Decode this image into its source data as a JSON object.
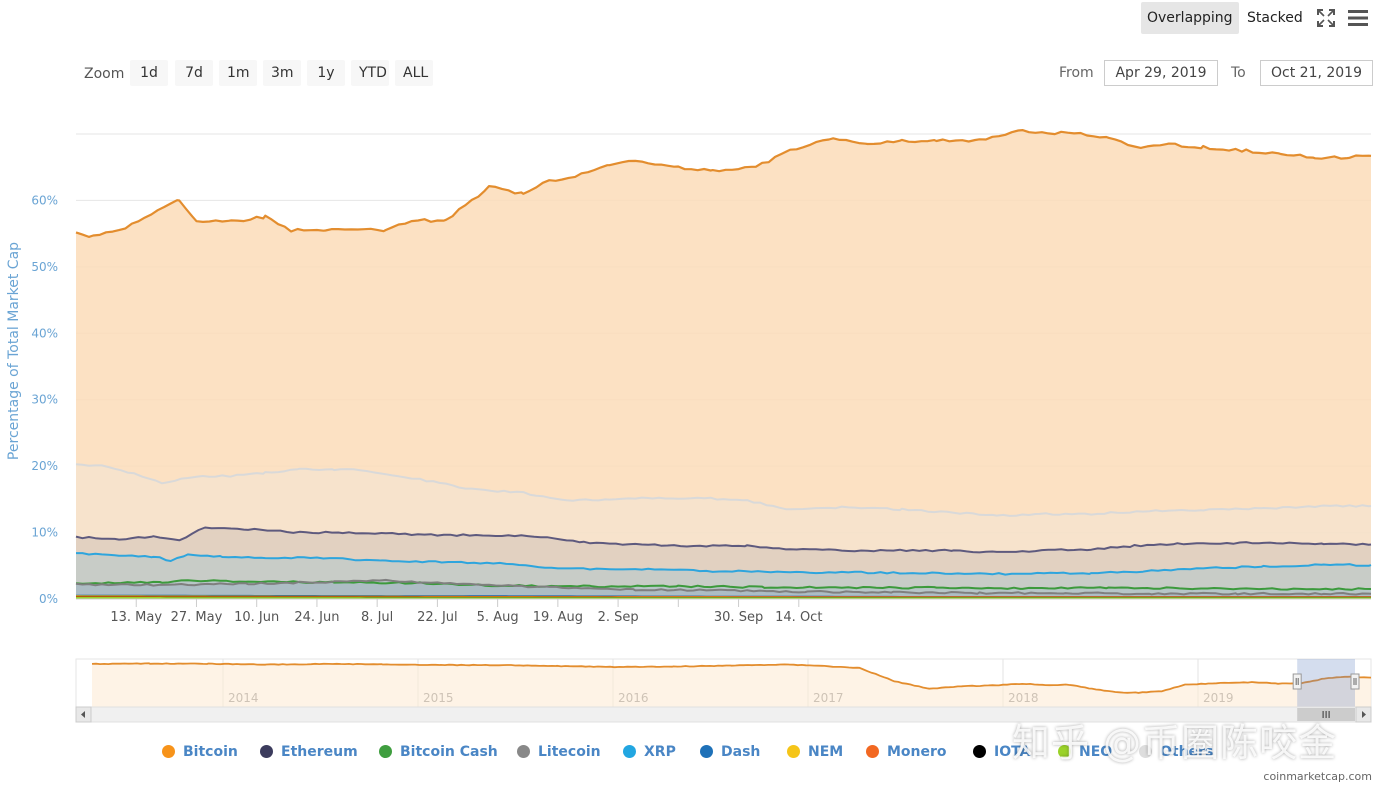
{
  "toolbar": {
    "zoom_label": "Zoom",
    "zoom_buttons": [
      "1d",
      "7d",
      "1m",
      "3m",
      "1y",
      "YTD",
      "ALL"
    ],
    "mode_overlapping": "Overlapping",
    "mode_stacked": "Stacked",
    "from_label": "From",
    "from_value": "Apr 29, 2019",
    "to_label": "To",
    "to_value": "Oct 21, 2019",
    "icons": [
      "fullscreen-icon",
      "menu-icon"
    ]
  },
  "chart_data": {
    "type": "area",
    "title": "",
    "ylabel": "Percentage of Total Market Cap",
    "ylim": [
      0,
      70
    ],
    "yticks": [
      "0%",
      "10%",
      "20%",
      "30%",
      "40%",
      "50%",
      "60%"
    ],
    "xticks": [
      "13. May",
      "27. May",
      "10. Jun",
      "24. Jun",
      "8. Jul",
      "22. Jul",
      "5. Aug",
      "19. Aug",
      "2. Sep",
      "30. Sep",
      "14. Oct"
    ],
    "x_range": [
      "2019-04-29",
      "2019-10-21"
    ],
    "grid": true,
    "legend_position": "bottom",
    "series": [
      {
        "name": "Bitcoin",
        "color": "#e38d2e",
        "fill": "#fbdcb8",
        "values": [
          [
            0,
            55
          ],
          [
            4,
            54.5
          ],
          [
            10,
            55.5
          ],
          [
            16,
            57.5
          ],
          [
            22,
            59.5
          ],
          [
            24,
            60
          ],
          [
            28,
            57
          ],
          [
            36,
            56.8
          ],
          [
            44,
            57.5
          ],
          [
            50,
            55.5
          ],
          [
            58,
            55.5
          ],
          [
            72,
            55.5
          ],
          [
            78,
            57
          ],
          [
            86,
            57
          ],
          [
            92,
            60
          ],
          [
            96,
            62
          ],
          [
            104,
            61
          ],
          [
            110,
            63
          ],
          [
            116,
            63.5
          ],
          [
            124,
            65.5
          ],
          [
            130,
            66
          ],
          [
            140,
            65
          ],
          [
            148,
            64.5
          ],
          [
            158,
            65
          ],
          [
            166,
            67.5
          ],
          [
            176,
            69.5
          ],
          [
            184,
            68.5
          ],
          [
            192,
            69
          ],
          [
            200,
            69
          ],
          [
            210,
            69
          ],
          [
            220,
            70.5
          ],
          [
            226,
            70
          ],
          [
            232,
            70.2
          ],
          [
            240,
            69.5
          ],
          [
            246,
            68
          ],
          [
            254,
            68.5
          ],
          [
            262,
            68
          ],
          [
            272,
            67.5
          ],
          [
            280,
            67
          ],
          [
            288,
            66.5
          ],
          [
            296,
            66.5
          ],
          [
            301,
            66.7
          ]
        ]
      },
      {
        "name": "Others",
        "color": "#d9d9d9",
        "fill": "#f3e5d3",
        "values": [
          [
            0,
            20.3
          ],
          [
            6,
            20
          ],
          [
            14,
            18.8
          ],
          [
            20,
            17.5
          ],
          [
            28,
            18.5
          ],
          [
            36,
            18.5
          ],
          [
            44,
            19
          ],
          [
            52,
            19.5
          ],
          [
            60,
            19.5
          ],
          [
            66,
            19.5
          ],
          [
            72,
            18.8
          ],
          [
            80,
            18
          ],
          [
            92,
            16.5
          ],
          [
            104,
            16
          ],
          [
            114,
            14.8
          ],
          [
            124,
            15
          ],
          [
            134,
            15.2
          ],
          [
            146,
            15.2
          ],
          [
            156,
            14.8
          ],
          [
            166,
            13.5
          ],
          [
            178,
            13.8
          ],
          [
            192,
            13.5
          ],
          [
            204,
            13
          ],
          [
            214,
            12.5
          ],
          [
            224,
            12.8
          ],
          [
            236,
            12.8
          ],
          [
            248,
            13.2
          ],
          [
            262,
            13.4
          ],
          [
            276,
            13.6
          ],
          [
            290,
            14
          ],
          [
            301,
            14
          ]
        ]
      },
      {
        "name": "Ethereum",
        "color": "#5e5a7e",
        "fill": "#d2c2b8",
        "values": [
          [
            0,
            9.3
          ],
          [
            10,
            9
          ],
          [
            18,
            9.4
          ],
          [
            24,
            8.8
          ],
          [
            30,
            10.8
          ],
          [
            40,
            10.5
          ],
          [
            52,
            10
          ],
          [
            62,
            10
          ],
          [
            72,
            9.9
          ],
          [
            84,
            9.6
          ],
          [
            96,
            9.6
          ],
          [
            108,
            9.4
          ],
          [
            118,
            8.5
          ],
          [
            130,
            8.2
          ],
          [
            142,
            8
          ],
          [
            156,
            8
          ],
          [
            166,
            7.5
          ],
          [
            178,
            7.3
          ],
          [
            190,
            7.3
          ],
          [
            204,
            7.3
          ],
          [
            214,
            7
          ],
          [
            226,
            7.3
          ],
          [
            236,
            7.5
          ],
          [
            246,
            8
          ],
          [
            256,
            8.3
          ],
          [
            266,
            8.4
          ],
          [
            276,
            8.5
          ],
          [
            290,
            8.3
          ],
          [
            301,
            8.2
          ]
        ]
      },
      {
        "name": "XRP",
        "color": "#2ea5dd",
        "fill": "#b2c9cc",
        "values": [
          [
            0,
            6.9
          ],
          [
            10,
            6.6
          ],
          [
            18,
            6.4
          ],
          [
            22,
            5.8
          ],
          [
            26,
            6.6
          ],
          [
            34,
            6.4
          ],
          [
            44,
            6.2
          ],
          [
            56,
            6.2
          ],
          [
            66,
            5.9
          ],
          [
            76,
            5.6
          ],
          [
            88,
            5.6
          ],
          [
            100,
            5.3
          ],
          [
            112,
            4.6
          ],
          [
            124,
            4.5
          ],
          [
            136,
            4.4
          ],
          [
            148,
            4.2
          ],
          [
            160,
            4.1
          ],
          [
            172,
            4
          ],
          [
            184,
            4
          ],
          [
            196,
            3.9
          ],
          [
            210,
            3.8
          ],
          [
            222,
            3.8
          ],
          [
            236,
            3.9
          ],
          [
            250,
            4.2
          ],
          [
            262,
            4.6
          ],
          [
            276,
            4.9
          ],
          [
            290,
            5.2
          ],
          [
            301,
            5.1
          ]
        ]
      },
      {
        "name": "Bitcoin Cash",
        "color": "#3c9a3c",
        "fill": "#a9c1c7",
        "values": [
          [
            0,
            2.4
          ],
          [
            20,
            2.5
          ],
          [
            26,
            2.8
          ],
          [
            40,
            2.6
          ],
          [
            60,
            2.5
          ],
          [
            80,
            2.4
          ],
          [
            100,
            2
          ],
          [
            120,
            1.9
          ],
          [
            140,
            1.9
          ],
          [
            160,
            1.8
          ],
          [
            180,
            1.7
          ],
          [
            200,
            1.7
          ],
          [
            220,
            1.6
          ],
          [
            240,
            1.7
          ],
          [
            260,
            1.6
          ],
          [
            280,
            1.5
          ],
          [
            301,
            1.5
          ]
        ]
      },
      {
        "name": "Litecoin",
        "color": "#7f7f7f",
        "fill": "#a6b7c1",
        "values": [
          [
            0,
            2.2
          ],
          [
            20,
            2.1
          ],
          [
            40,
            2.3
          ],
          [
            60,
            2.6
          ],
          [
            72,
            2.8
          ],
          [
            90,
            2.2
          ],
          [
            110,
            1.8
          ],
          [
            130,
            1.4
          ],
          [
            150,
            1.3
          ],
          [
            170,
            1.1
          ],
          [
            190,
            1
          ],
          [
            210,
            0.9
          ],
          [
            230,
            0.9
          ],
          [
            250,
            0.8
          ],
          [
            270,
            0.8
          ],
          [
            290,
            0.8
          ],
          [
            301,
            0.8
          ]
        ]
      },
      {
        "name": "Dash",
        "color": "#1d63a9",
        "fill": "#9fb3c0",
        "values": [
          [
            0,
            0.5
          ],
          [
            100,
            0.4
          ],
          [
            200,
            0.3
          ],
          [
            301,
            0.3
          ]
        ]
      },
      {
        "name": "NEM",
        "color": "#eab409",
        "fill": "#d8d38a",
        "values": [
          [
            0,
            0.4
          ],
          [
            100,
            0.3
          ],
          [
            200,
            0.2
          ],
          [
            301,
            0.2
          ]
        ]
      },
      {
        "name": "Monero",
        "color": "#f16b10",
        "fill": "#e7b58e",
        "values": [
          [
            0,
            0.3
          ],
          [
            150,
            0.25
          ],
          [
            301,
            0.25
          ]
        ]
      },
      {
        "name": "IOTA",
        "color": "#111111",
        "fill": "#888888",
        "values": [
          [
            0,
            0.2
          ],
          [
            150,
            0.15
          ],
          [
            301,
            0.15
          ]
        ]
      },
      {
        "name": "NEO",
        "color": "#9ad229",
        "fill": "#c5e27d",
        "values": [
          [
            0,
            0.15
          ],
          [
            150,
            0.1
          ],
          [
            301,
            0.1
          ]
        ]
      }
    ]
  },
  "navigator": {
    "year_labels": [
      "2014",
      "2015",
      "2016",
      "2017",
      "2018",
      "2019"
    ],
    "series_name": "Bitcoin",
    "values": [
      [
        0,
        94
      ],
      [
        5,
        95
      ],
      [
        10,
        94.5
      ],
      [
        15,
        93
      ],
      [
        20,
        94
      ],
      [
        25,
        93.5
      ],
      [
        30,
        92
      ],
      [
        35,
        92
      ],
      [
        40,
        90
      ],
      [
        45,
        88
      ],
      [
        50,
        89
      ],
      [
        55,
        91
      ],
      [
        60,
        93
      ],
      [
        63,
        90
      ],
      [
        66,
        86
      ],
      [
        69,
        60
      ],
      [
        72,
        45
      ],
      [
        75,
        50
      ],
      [
        78,
        52
      ],
      [
        80,
        55
      ],
      [
        82,
        52
      ],
      [
        84,
        53
      ],
      [
        86,
        45
      ],
      [
        88,
        38
      ],
      [
        90,
        37
      ],
      [
        92,
        40
      ],
      [
        94,
        53
      ],
      [
        96,
        55
      ],
      [
        98,
        57
      ],
      [
        100,
        58
      ],
      [
        102,
        55
      ],
      [
        104,
        56
      ],
      [
        106,
        65
      ],
      [
        108,
        69
      ],
      [
        110,
        67
      ]
    ],
    "range_selection": [
      0.943,
      1.0
    ]
  },
  "legend": [
    {
      "name": "Bitcoin",
      "color": "#f7931a"
    },
    {
      "name": "Ethereum",
      "color": "#3c3c5d"
    },
    {
      "name": "Bitcoin Cash",
      "color": "#3f9e3f"
    },
    {
      "name": "Litecoin",
      "color": "#888888"
    },
    {
      "name": "XRP",
      "color": "#22a6e1"
    },
    {
      "name": "Dash",
      "color": "#1e71b8"
    },
    {
      "name": "NEM",
      "color": "#f5c518"
    },
    {
      "name": "Monero",
      "color": "#f26822"
    },
    {
      "name": "IOTA",
      "color": "#000000"
    },
    {
      "name": "NEO",
      "color": "#9ad229"
    },
    {
      "name": "Others",
      "color": "#dddddd"
    }
  ],
  "credit": "coinmarketcap.com",
  "watermark": "知乎 @币圈陈咬金"
}
